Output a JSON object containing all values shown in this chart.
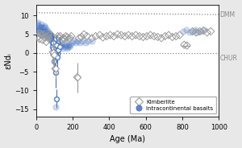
{
  "xlabel": "Age (Ma)",
  "ylabel": "εNdᵢ",
  "xlim": [
    0,
    1000
  ],
  "ylim": [
    -17,
    13
  ],
  "dmm_label": "DMM",
  "chur_label": "CHUR",
  "dmm_line_x": [
    0,
    1000
  ],
  "dmm_line_y": [
    10.8,
    10.3
  ],
  "chur_y": 0.0,
  "plot_bg": "#ffffff",
  "fig_bg": "#e8e8e8",
  "kimb_color": "#9a9a9a",
  "basalt_color_face": "#4472c4",
  "basalt_color_edge": "#4472c4",
  "font_size": 7,
  "kimberlite_data": [
    [
      12,
      4.5
    ],
    [
      18,
      3.8
    ],
    [
      22,
      5.2
    ],
    [
      28,
      4.8
    ],
    [
      35,
      3.5
    ],
    [
      40,
      5.0
    ],
    [
      48,
      4.2
    ],
    [
      55,
      3.0
    ],
    [
      62,
      4.5
    ],
    [
      70,
      3.8
    ],
    [
      78,
      5.0
    ],
    [
      85,
      4.3
    ],
    [
      92,
      0.2
    ],
    [
      98,
      -0.5
    ],
    [
      105,
      -4.2
    ],
    [
      112,
      3.8
    ],
    [
      118,
      4.5
    ],
    [
      125,
      4.0
    ],
    [
      132,
      4.5
    ],
    [
      140,
      3.5
    ],
    [
      148,
      4.0
    ],
    [
      155,
      3.8
    ],
    [
      162,
      4.5
    ],
    [
      170,
      4.2
    ],
    [
      178,
      3.8
    ],
    [
      185,
      4.0
    ],
    [
      192,
      4.5
    ],
    [
      225,
      -6.5
    ],
    [
      235,
      4.0
    ],
    [
      248,
      4.3
    ],
    [
      262,
      5.0
    ],
    [
      278,
      4.5
    ],
    [
      305,
      4.0
    ],
    [
      325,
      4.5
    ],
    [
      348,
      4.8
    ],
    [
      365,
      4.2
    ],
    [
      385,
      4.5
    ],
    [
      405,
      4.8
    ],
    [
      425,
      4.5
    ],
    [
      445,
      5.0
    ],
    [
      465,
      4.8
    ],
    [
      485,
      4.5
    ],
    [
      505,
      4.8
    ],
    [
      525,
      4.5
    ],
    [
      545,
      4.8
    ],
    [
      565,
      4.5
    ],
    [
      585,
      4.3
    ],
    [
      605,
      4.5
    ],
    [
      625,
      4.8
    ],
    [
      645,
      4.5
    ],
    [
      665,
      4.3
    ],
    [
      685,
      4.0
    ],
    [
      705,
      4.5
    ],
    [
      725,
      4.8
    ],
    [
      745,
      4.3
    ],
    [
      765,
      4.5
    ],
    [
      785,
      4.8
    ],
    [
      810,
      2.2
    ],
    [
      825,
      2.0
    ],
    [
      855,
      5.8
    ],
    [
      875,
      5.5
    ],
    [
      895,
      5.8
    ],
    [
      915,
      6.0
    ],
    [
      935,
      5.5
    ],
    [
      955,
      5.8
    ]
  ],
  "kimberlite_errorbars": [
    [
      92,
      0.2,
      3.5,
      3.5
    ],
    [
      98,
      -0.5,
      3.0,
      3.0
    ],
    [
      105,
      -4.2,
      2.5,
      2.5
    ],
    [
      225,
      -6.5,
      4.0,
      4.0
    ]
  ],
  "kimberlite_hbar": [
    [
      795,
      835,
      2.0
    ]
  ],
  "basalt_data": [
    [
      5,
      7.8
    ],
    [
      8,
      6.5
    ],
    [
      10,
      8.2
    ],
    [
      12,
      6.2
    ],
    [
      14,
      5.8
    ],
    [
      16,
      7.2
    ],
    [
      18,
      6.8
    ],
    [
      20,
      5.2
    ],
    [
      22,
      6.2
    ],
    [
      25,
      7.8
    ],
    [
      28,
      6.8
    ],
    [
      30,
      5.8
    ],
    [
      32,
      6.8
    ],
    [
      35,
      4.8
    ],
    [
      38,
      5.8
    ],
    [
      40,
      6.8
    ],
    [
      42,
      5.2
    ],
    [
      45,
      7.2
    ],
    [
      48,
      6.8
    ],
    [
      50,
      5.8
    ],
    [
      52,
      4.8
    ],
    [
      55,
      5.8
    ],
    [
      58,
      5.2
    ],
    [
      60,
      6.2
    ],
    [
      62,
      5.8
    ],
    [
      65,
      4.8
    ],
    [
      68,
      5.2
    ],
    [
      70,
      4.2
    ],
    [
      72,
      3.8
    ],
    [
      75,
      5.2
    ],
    [
      78,
      4.8
    ],
    [
      80,
      3.8
    ],
    [
      82,
      4.8
    ],
    [
      85,
      3.2
    ],
    [
      88,
      2.8
    ],
    [
      90,
      1.8
    ],
    [
      92,
      2.8
    ],
    [
      95,
      1.2
    ],
    [
      98,
      -2.2
    ],
    [
      100,
      -0.8
    ],
    [
      105,
      -14.5
    ],
    [
      108,
      -5.2
    ],
    [
      110,
      2.2
    ],
    [
      112,
      -12.2
    ],
    [
      115,
      -1.2
    ],
    [
      118,
      2.8
    ],
    [
      122,
      0.8
    ],
    [
      128,
      1.8
    ],
    [
      132,
      2.2
    ],
    [
      138,
      1.8
    ],
    [
      142,
      2.2
    ],
    [
      148,
      1.2
    ],
    [
      152,
      2.8
    ],
    [
      158,
      1.8
    ],
    [
      162,
      2.2
    ],
    [
      168,
      1.2
    ],
    [
      172,
      1.8
    ],
    [
      178,
      2.2
    ],
    [
      182,
      1.8
    ],
    [
      188,
      2.2
    ],
    [
      195,
      2.8
    ],
    [
      205,
      3.2
    ],
    [
      215,
      2.8
    ],
    [
      225,
      3.2
    ],
    [
      238,
      2.8
    ],
    [
      252,
      3.2
    ],
    [
      268,
      2.8
    ],
    [
      285,
      3.2
    ],
    [
      305,
      3.2
    ],
    [
      805,
      5.8
    ],
    [
      820,
      6.2
    ],
    [
      838,
      5.5
    ],
    [
      855,
      5.8
    ],
    [
      870,
      6.2
    ],
    [
      885,
      5.5
    ],
    [
      900,
      5.8
    ],
    [
      920,
      6.2
    ]
  ],
  "basalt_errorbars": [
    [
      88,
      2.8,
      2.5,
      2.5
    ],
    [
      90,
      1.8,
      2.5,
      2.5
    ],
    [
      92,
      2.8,
      2.0,
      2.0
    ],
    [
      95,
      1.2,
      2.0,
      2.0
    ],
    [
      98,
      -2.2,
      3.0,
      3.0
    ],
    [
      100,
      -0.8,
      2.5,
      2.5
    ],
    [
      108,
      -5.2,
      4.0,
      4.0
    ],
    [
      110,
      2.2,
      2.5,
      2.5
    ],
    [
      112,
      -12.2,
      2.5,
      2.5
    ],
    [
      115,
      -1.2,
      2.5,
      2.5
    ],
    [
      122,
      0.8,
      2.0,
      2.0
    ],
    [
      128,
      1.8,
      2.5,
      2.5
    ]
  ]
}
